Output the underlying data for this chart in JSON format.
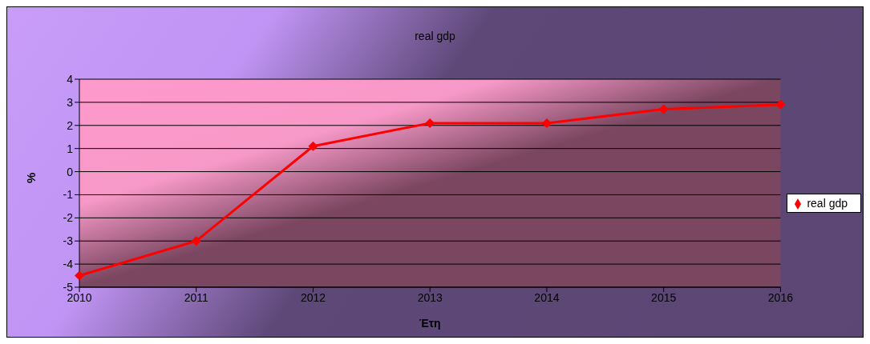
{
  "chart_data": {
    "type": "line",
    "title": "real gdp",
    "xlabel": "Έτη",
    "ylabel": "%",
    "categories": [
      "2010",
      "2011",
      "2012",
      "2013",
      "2014",
      "2015",
      "2016"
    ],
    "series": [
      {
        "name": "real gdp",
        "color": "#ff0000",
        "values": [
          -4.5,
          -3.0,
          1.1,
          2.1,
          2.1,
          2.7,
          2.9
        ]
      }
    ],
    "ylim": [
      -5,
      4
    ],
    "yticks": [
      -5,
      -4,
      -3,
      -2,
      -1,
      0,
      1,
      2,
      3,
      4
    ],
    "grid": "y",
    "legend": "right",
    "marker": "diamond",
    "line_style": "solid"
  }
}
